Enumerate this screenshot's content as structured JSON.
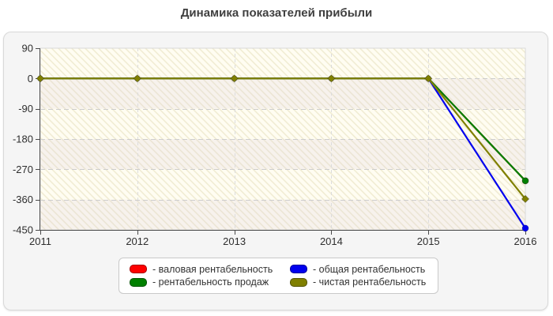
{
  "page": {
    "title": "Динамика показателей прибыли",
    "background": "#ffffff"
  },
  "panel": {
    "background": "#f5f5f5",
    "border_color": "#d9d9d9"
  },
  "legend": {
    "items": [
      {
        "label": "- валовая рентабельность",
        "color": "#fe0000"
      },
      {
        "label": "- общая рентабельность",
        "color": "#0000ee"
      },
      {
        "label": "- рентабельность продаж",
        "color": "#008000"
      },
      {
        "label": "- чистая рентабельность",
        "color": "#808000"
      }
    ]
  },
  "chart_data": {
    "type": "line",
    "title": "Динамика показателей прибыли",
    "categories": [
      "2011",
      "2012",
      "2013",
      "2014",
      "2015",
      "2016"
    ],
    "yticks": [
      90,
      0,
      -90,
      -180,
      -270,
      -360,
      -450
    ],
    "ytick_labels": [
      "90",
      "0",
      "-90",
      "-180",
      "-270",
      "-360",
      "-450"
    ],
    "ylim": [
      -450,
      90
    ],
    "grid": true,
    "legend_position": "bottom",
    "plot_background": "#fffdf2",
    "gridline_color": "#cdcdcd",
    "axis_color": "#4a4a4a",
    "series": [
      {
        "name": "валовая рентабельность",
        "color": "#fe0000",
        "marker": "circle",
        "values": [
          0,
          0,
          0,
          0,
          0,
          -304
        ]
      },
      {
        "name": "общая рентабельность",
        "color": "#0000ee",
        "marker": "circle",
        "values": [
          0,
          0,
          0,
          0,
          0,
          -445
        ]
      },
      {
        "name": "рентабельность продаж",
        "color": "#008000",
        "marker": "circle",
        "values": [
          0,
          0,
          0,
          0,
          0,
          -304
        ]
      },
      {
        "name": "чистая рентабельность",
        "color": "#808000",
        "marker": "diamond",
        "values": [
          0,
          0,
          0,
          0,
          0,
          -358
        ]
      }
    ]
  }
}
